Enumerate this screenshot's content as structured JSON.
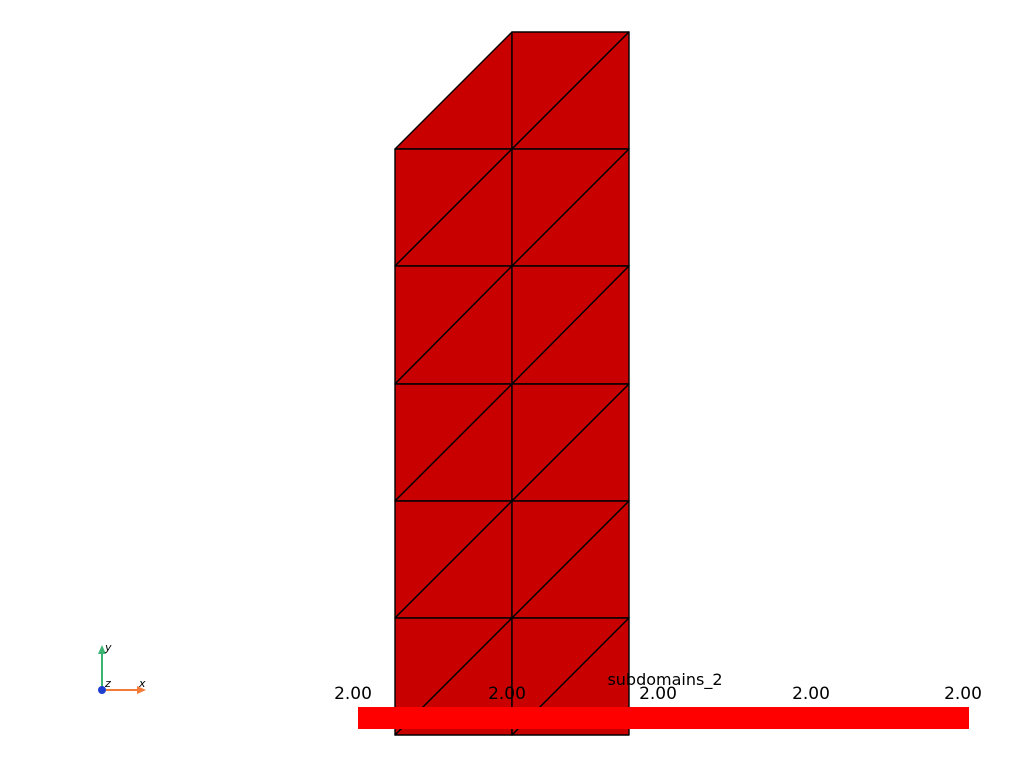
{
  "scalar_bar": {
    "title": "subdomains_2",
    "tick_labels": [
      "2.00",
      "2.00",
      "2.00",
      "2.00",
      "2.00"
    ],
    "color": "#ff0000"
  },
  "mesh": {
    "fill_color": "#c80000",
    "edge_color": "#000000"
  },
  "axes": {
    "x_label": "x",
    "y_label": "y",
    "z_label": "z",
    "x_color": "#f47a3a",
    "y_color": "#3cb371",
    "z_color": "#1f3fd0"
  }
}
